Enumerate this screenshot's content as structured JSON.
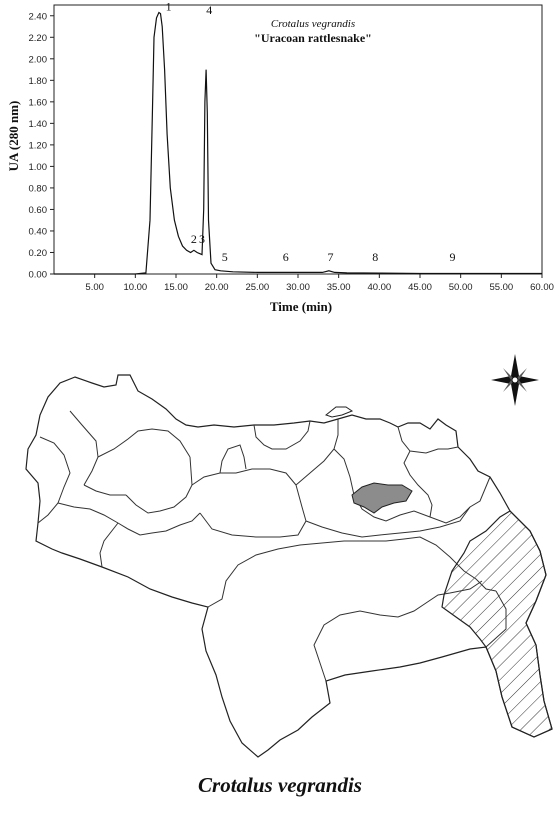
{
  "chart_data": {
    "type": "line",
    "title": "Crotalus vegrandis",
    "subtitle": "\"Uracoan rattlesnake\"",
    "xlabel": "Time (min)",
    "ylabel": "UA (280 nm)",
    "xlim": [
      0,
      60
    ],
    "ylim": [
      0,
      2.5
    ],
    "x_ticks": [
      "5.00",
      "10.00",
      "15.00",
      "20.00",
      "25.00",
      "30.00",
      "35.00",
      "40.00",
      "45.00",
      "50.00",
      "55.00",
      "60.00"
    ],
    "y_ticks": [
      "0.00",
      "0.20",
      "0.40",
      "0.60",
      "0.80",
      "1.00",
      "1.20",
      "1.40",
      "1.60",
      "1.80",
      "2.00",
      "2.20",
      "2.40"
    ],
    "grid": false,
    "series": [
      {
        "x": [
          0,
          10,
          11.3,
          11.8,
          12.1,
          12.3,
          12.6,
          12.9,
          13.1,
          13.3,
          13.6,
          13.9,
          14.3,
          14.8,
          15.3,
          15.8,
          16.3,
          16.8,
          17.2,
          17.6,
          17.9,
          18.2,
          18.4,
          18.55,
          18.7,
          18.85,
          19.0,
          19.3,
          19.8,
          20.5,
          22,
          25,
          30,
          33,
          33.8,
          34.5,
          36,
          40,
          45,
          50,
          55,
          60
        ],
        "y": [
          0.0,
          0.0,
          0.01,
          0.5,
          1.5,
          2.2,
          2.38,
          2.43,
          2.42,
          2.3,
          1.9,
          1.3,
          0.8,
          0.5,
          0.35,
          0.26,
          0.22,
          0.2,
          0.22,
          0.2,
          0.19,
          0.18,
          0.6,
          1.6,
          1.9,
          1.5,
          0.5,
          0.1,
          0.04,
          0.03,
          0.02,
          0.015,
          0.015,
          0.015,
          0.03,
          0.015,
          0.01,
          0.008,
          0.005,
          0.005,
          0.005,
          0.005
        ]
      }
    ],
    "peak_labels": [
      {
        "label": "1",
        "x": 13.6,
        "y": 2.43
      },
      {
        "label": "2",
        "x": 16.7,
        "y": 0.27
      },
      {
        "label": "3",
        "x": 17.7,
        "y": 0.27
      },
      {
        "label": "4",
        "x": 18.6,
        "y": 2.4
      },
      {
        "label": "5",
        "x": 20.5,
        "y": 0.1
      },
      {
        "label": "6",
        "x": 28.0,
        "y": 0.1
      },
      {
        "label": "7",
        "x": 33.5,
        "y": 0.1
      },
      {
        "label": "8",
        "x": 39.0,
        "y": 0.1
      },
      {
        "label": "9",
        "x": 48.5,
        "y": 0.1
      }
    ]
  },
  "map": {
    "caption": "Crotalus vegrandis",
    "range_fill": "#8c8c8c",
    "compass": "compass-rose-icon"
  }
}
